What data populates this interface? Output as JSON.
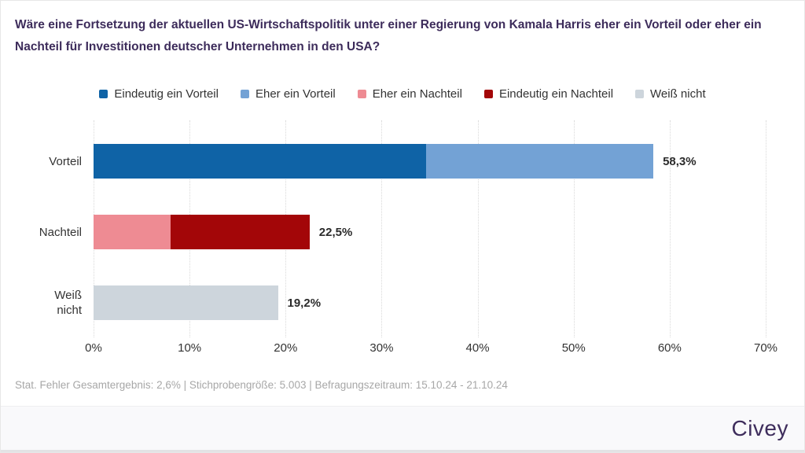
{
  "title": "Wäre eine Fortsetzung der aktuellen US-Wirtschaftspolitik unter einer Regierung von Kamala Harris eher ein Vorteil oder eher ein Nachteil für Investitionen deutscher Unternehmen in den USA?",
  "footnote": "Stat. Fehler Gesamtergebnis: 2,6% | Stichprobengröße: 5.003 | Befragungszeitraum: 15.10.24 - 21.10.24",
  "brand": "Civey",
  "chart_data": {
    "type": "bar",
    "orientation": "horizontal",
    "xlim": [
      0,
      70
    ],
    "xticks": [
      "0%",
      "10%",
      "20%",
      "30%",
      "40%",
      "50%",
      "60%",
      "70%"
    ],
    "grid": "vertical-dotted",
    "legend_position": "top-center",
    "legend": [
      {
        "label": "Eindeutig ein Vorteil",
        "color": "#0f63a6"
      },
      {
        "label": "Eher ein Vorteil",
        "color": "#73a2d5"
      },
      {
        "label": "Eher ein Nachteil",
        "color": "#ee8b93"
      },
      {
        "label": "Eindeutig ein Nachteil",
        "color": "#a30608"
      },
      {
        "label": "Weiß nicht",
        "color": "#cdd5dc"
      }
    ],
    "rows": [
      {
        "label": "Vorteil",
        "total_label": "58,3%",
        "total_value": 58.3,
        "segments": [
          {
            "series": "Eindeutig ein Vorteil",
            "value": 34.6
          },
          {
            "series": "Eher ein Vorteil",
            "value": 23.7
          }
        ]
      },
      {
        "label": "Nachteil",
        "total_label": "22,5%",
        "total_value": 22.5,
        "segments": [
          {
            "series": "Eher ein Nachteil",
            "value": 8.0
          },
          {
            "series": "Eindeutig ein Nachteil",
            "value": 14.5
          }
        ]
      },
      {
        "label": "Weiß\nnicht",
        "total_label": "19,2%",
        "total_value": 19.2,
        "segments": [
          {
            "series": "Weiß nicht",
            "value": 19.2
          }
        ]
      }
    ]
  }
}
